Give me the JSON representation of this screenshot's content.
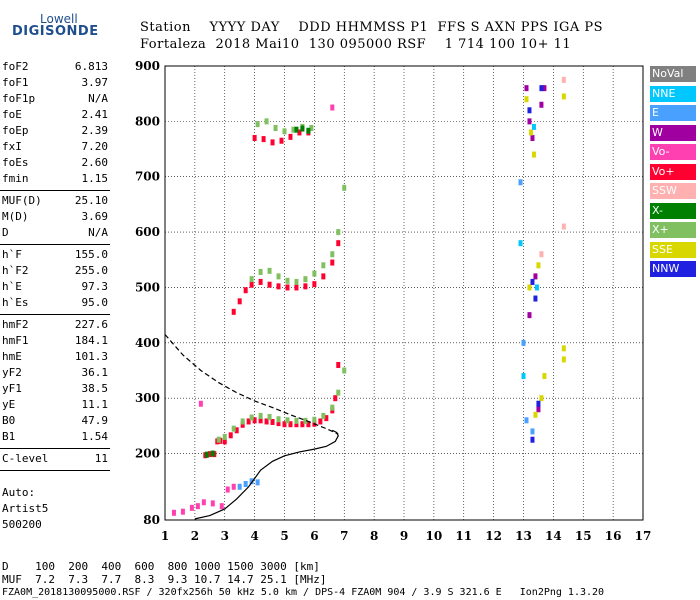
{
  "logo": {
    "top": "Lowell",
    "bottom": "DIGISONDE"
  },
  "header": {
    "row1": "Station    YYYY DAY    DDD HHMMSS P1  FFS S AXN PPS IGA PS",
    "row2": "Fortaleza  2018 Mai10  130 095000 RSF    1 714 100 10+ 11"
  },
  "params_groups": [
    [
      [
        "foF2",
        "6.813"
      ],
      [
        "foF1",
        "3.97"
      ],
      [
        "foF1p",
        "N/A"
      ],
      [
        "foE",
        "2.41"
      ],
      [
        "foEp",
        "2.39"
      ],
      [
        "fxI",
        "7.20"
      ],
      [
        "foEs",
        "2.60"
      ],
      [
        "fmin",
        "1.15"
      ]
    ],
    [
      [
        "MUF(D)",
        "25.10"
      ],
      [
        "M(D)",
        "3.69"
      ],
      [
        "D",
        "N/A"
      ]
    ],
    [
      [
        "h`F",
        "155.0"
      ],
      [
        "h`F2",
        "255.0"
      ],
      [
        "h`E",
        "97.3"
      ],
      [
        "h`Es",
        "95.0"
      ]
    ],
    [
      [
        "hmF2",
        "227.6"
      ],
      [
        "hmF1",
        "184.1"
      ],
      [
        "hmE",
        "101.3"
      ],
      [
        "yF2",
        "36.1"
      ],
      [
        "yF1",
        "38.5"
      ],
      [
        "yE",
        "11.1"
      ],
      [
        "B0",
        "47.9"
      ],
      [
        "B1",
        "1.54"
      ]
    ],
    [
      [
        "C-level",
        "11"
      ]
    ]
  ],
  "auto": {
    "line1": "Auto:",
    "line2": "Artist5",
    "line3": "500200"
  },
  "legend": [
    {
      "label": "NoVal",
      "color": "#808080"
    },
    {
      "label": "NNE",
      "color": "#00c8ff"
    },
    {
      "label": "E",
      "color": "#4aa0ff"
    },
    {
      "label": "W",
      "color": "#a000a0"
    },
    {
      "label": "Vo-",
      "color": "#ff40b0"
    },
    {
      "label": "Vo+",
      "color": "#ff0030"
    },
    {
      "label": "SSW",
      "color": "#ffb0b0"
    },
    {
      "label": "X-",
      "color": "#008000"
    },
    {
      "label": "X+",
      "color": "#80c060"
    },
    {
      "label": "SSE",
      "color": "#d8d800"
    },
    {
      "label": "NNW",
      "color": "#2020e0"
    }
  ],
  "chart_data": {
    "type": "scatter",
    "x_ticks": [
      "1",
      "2",
      "3",
      "4",
      "5",
      "6",
      "7",
      "8",
      "9",
      "10",
      "11",
      "12",
      "13",
      "14",
      "15",
      "16",
      "17"
    ],
    "y_ticks": [
      "80",
      "200",
      "300",
      "400",
      "500",
      "600",
      "700",
      "800",
      "900"
    ],
    "xlim": [
      1,
      17
    ],
    "ylim": [
      80,
      900
    ],
    "grid": true,
    "legend_placement": "right",
    "series": [
      {
        "color": "#ff0030",
        "points": [
          [
            2.35,
            197
          ],
          [
            2.5,
            199
          ],
          [
            2.65,
            199
          ],
          [
            2.75,
            222
          ],
          [
            2.85,
            223
          ],
          [
            3.0,
            222
          ],
          [
            3.2,
            233
          ],
          [
            3.4,
            242
          ],
          [
            3.6,
            252
          ],
          [
            3.8,
            258
          ],
          [
            4.0,
            260
          ],
          [
            4.2,
            260
          ],
          [
            4.4,
            258
          ],
          [
            4.6,
            257
          ],
          [
            4.8,
            255
          ],
          [
            5.0,
            253
          ],
          [
            5.2,
            253
          ],
          [
            5.4,
            253
          ],
          [
            5.6,
            253
          ],
          [
            5.8,
            253
          ],
          [
            6.0,
            254
          ],
          [
            6.2,
            258
          ],
          [
            6.4,
            264
          ],
          [
            6.6,
            278
          ],
          [
            6.7,
            300
          ],
          [
            6.8,
            360
          ],
          [
            3.3,
            456
          ],
          [
            3.5,
            475
          ],
          [
            3.7,
            495
          ],
          [
            3.9,
            505
          ],
          [
            4.2,
            510
          ],
          [
            4.5,
            505
          ],
          [
            4.8,
            502
          ],
          [
            5.1,
            500
          ],
          [
            5.4,
            500
          ],
          [
            5.7,
            502
          ],
          [
            6.0,
            506
          ],
          [
            6.3,
            520
          ],
          [
            6.6,
            545
          ],
          [
            6.8,
            580
          ],
          [
            4.0,
            770
          ],
          [
            4.3,
            768
          ],
          [
            4.6,
            762
          ],
          [
            4.9,
            765
          ],
          [
            5.2,
            772
          ],
          [
            5.5,
            780
          ],
          [
            5.8,
            780
          ]
        ]
      },
      {
        "color": "#80c060",
        "points": [
          [
            2.8,
            225
          ],
          [
            3.0,
            230
          ],
          [
            3.3,
            245
          ],
          [
            3.6,
            258
          ],
          [
            3.9,
            265
          ],
          [
            4.2,
            268
          ],
          [
            4.5,
            266
          ],
          [
            4.8,
            262
          ],
          [
            5.1,
            260
          ],
          [
            5.4,
            259
          ],
          [
            5.7,
            259
          ],
          [
            6.0,
            261
          ],
          [
            6.3,
            268
          ],
          [
            6.6,
            283
          ],
          [
            6.8,
            310
          ],
          [
            7.0,
            350
          ],
          [
            3.9,
            515
          ],
          [
            4.2,
            528
          ],
          [
            4.5,
            530
          ],
          [
            4.8,
            520
          ],
          [
            5.1,
            512
          ],
          [
            5.4,
            510
          ],
          [
            5.7,
            515
          ],
          [
            6.0,
            525
          ],
          [
            6.3,
            540
          ],
          [
            6.6,
            560
          ],
          [
            6.8,
            600
          ],
          [
            7.0,
            680
          ],
          [
            4.1,
            795
          ],
          [
            4.4,
            800
          ],
          [
            4.7,
            788
          ],
          [
            5.0,
            782
          ],
          [
            5.3,
            785
          ],
          [
            5.6,
            790
          ],
          [
            5.9,
            788
          ]
        ]
      },
      {
        "color": "#008000",
        "points": [
          [
            5.4,
            785
          ],
          [
            5.6,
            787
          ],
          [
            5.8,
            783
          ],
          [
            2.4,
            198
          ],
          [
            2.6,
            200
          ]
        ]
      },
      {
        "color": "#ff40b0",
        "points": [
          [
            1.3,
            93
          ],
          [
            1.6,
            95
          ],
          [
            1.9,
            102
          ],
          [
            2.1,
            105
          ],
          [
            2.3,
            112
          ],
          [
            2.6,
            110
          ],
          [
            2.9,
            105
          ],
          [
            3.1,
            135
          ],
          [
            3.3,
            140
          ],
          [
            2.2,
            290
          ],
          [
            6.6,
            825
          ]
        ]
      },
      {
        "color": "#4aa0ff",
        "points": [
          [
            3.5,
            140
          ],
          [
            3.7,
            145
          ],
          [
            3.9,
            150
          ],
          [
            4.1,
            148
          ],
          [
            12.9,
            690
          ],
          [
            13.0,
            400
          ],
          [
            13.1,
            260
          ],
          [
            13.3,
            240
          ]
        ]
      },
      {
        "color": "#a000a0",
        "points": [
          [
            13.1,
            860
          ],
          [
            13.2,
            800
          ],
          [
            13.3,
            770
          ],
          [
            13.4,
            520
          ],
          [
            13.5,
            280
          ],
          [
            13.7,
            860
          ],
          [
            13.6,
            830
          ],
          [
            13.2,
            450
          ]
        ]
      },
      {
        "color": "#d8d800",
        "points": [
          [
            13.1,
            840
          ],
          [
            13.25,
            780
          ],
          [
            13.35,
            740
          ],
          [
            13.5,
            540
          ],
          [
            13.6,
            300
          ],
          [
            13.7,
            340
          ],
          [
            14.35,
            845
          ],
          [
            14.35,
            390
          ],
          [
            14.35,
            370
          ],
          [
            13.2,
            500
          ],
          [
            13.4,
            270
          ]
        ]
      },
      {
        "color": "#2020e0",
        "points": [
          [
            13.2,
            820
          ],
          [
            13.3,
            510
          ],
          [
            13.4,
            480
          ],
          [
            13.5,
            290
          ],
          [
            13.6,
            860
          ],
          [
            13.3,
            225
          ]
        ]
      },
      {
        "color": "#ffb0b0",
        "points": [
          [
            14.35,
            875
          ],
          [
            14.35,
            610
          ],
          [
            13.6,
            560
          ]
        ]
      },
      {
        "color": "#00c8ff",
        "points": [
          [
            12.9,
            580
          ],
          [
            13.0,
            340
          ],
          [
            13.35,
            790
          ],
          [
            13.45,
            500
          ]
        ]
      }
    ],
    "lines": [
      {
        "name": "profile",
        "style": "solid",
        "color": "#000",
        "points": [
          [
            2.0,
            82
          ],
          [
            2.5,
            88
          ],
          [
            3.0,
            100
          ],
          [
            3.4,
            118
          ],
          [
            3.8,
            140
          ],
          [
            4.2,
            170
          ],
          [
            4.6,
            186
          ],
          [
            5.0,
            196
          ],
          [
            5.5,
            203
          ],
          [
            6.0,
            208
          ],
          [
            6.4,
            213
          ],
          [
            6.7,
            222
          ],
          [
            6.8,
            232
          ],
          [
            6.75,
            238
          ],
          [
            6.6,
            242
          ]
        ]
      },
      {
        "name": "model",
        "style": "dashed",
        "color": "#000",
        "points": [
          [
            1.0,
            415
          ],
          [
            1.6,
            378
          ],
          [
            2.2,
            350
          ],
          [
            2.8,
            328
          ],
          [
            3.4,
            310
          ],
          [
            4.0,
            295
          ],
          [
            4.6,
            283
          ],
          [
            5.2,
            270
          ],
          [
            5.8,
            258
          ],
          [
            6.4,
            245
          ],
          [
            6.8,
            235
          ]
        ]
      }
    ]
  },
  "footer": {
    "line1": "D    100  200  400  600  800 1000 1500 3000 [km]",
    "line2": "MUF  7.2  7.3  7.7  8.3  9.3 10.7 14.7 25.1 [MHz]",
    "line3": "FZA0M_2018130095000.RSF / 320fx256h 50 kHz 5.0 km / DPS-4 FZA0M 904 / 3.9 S 321.6 E   Ion2Png 1.3.20"
  }
}
